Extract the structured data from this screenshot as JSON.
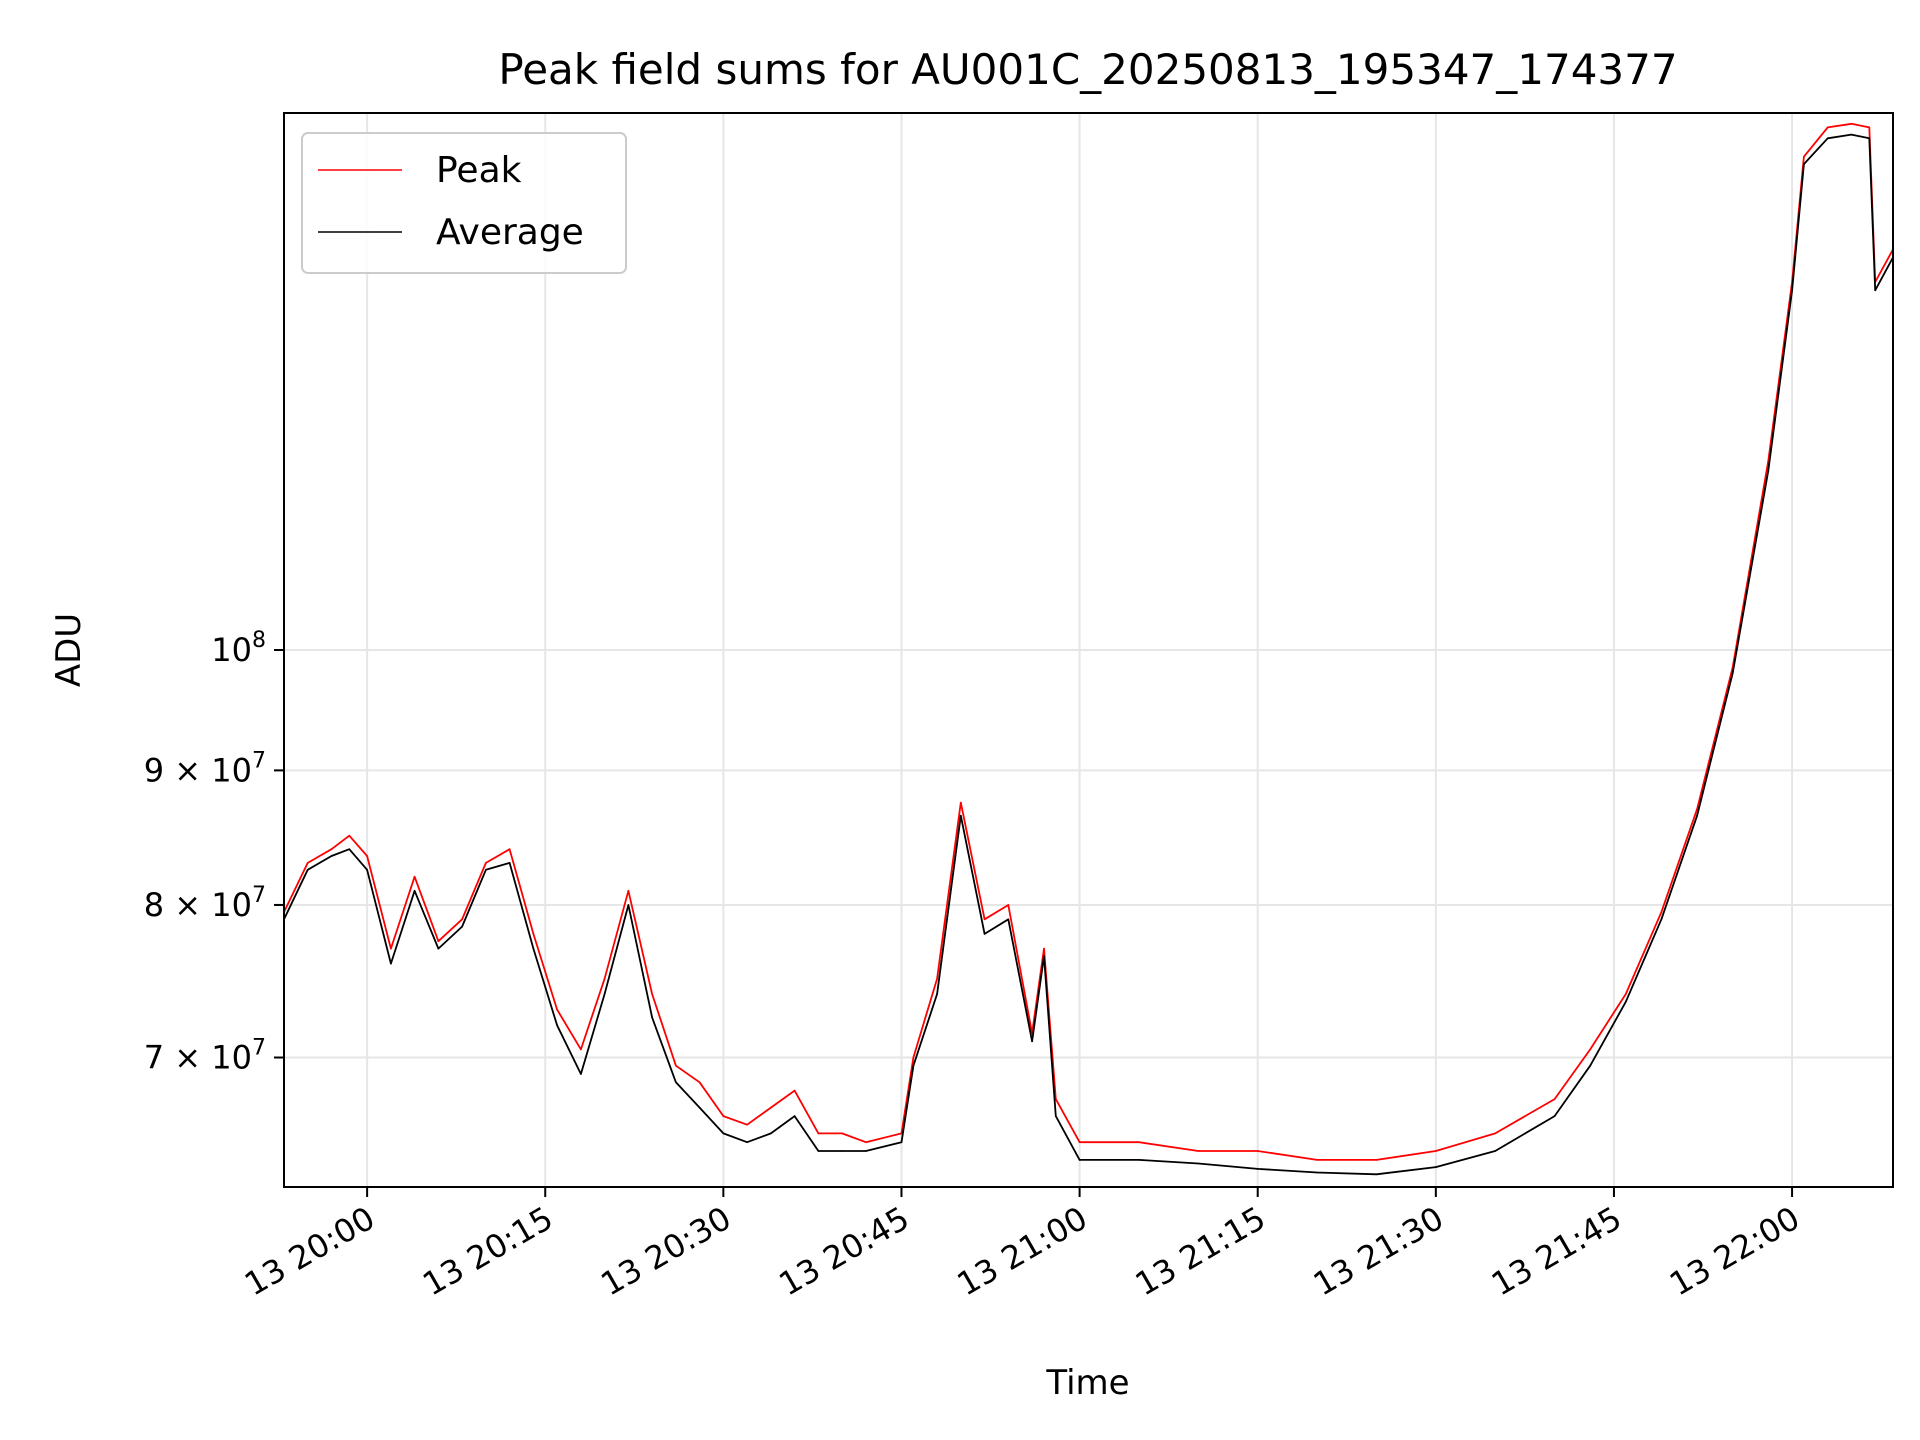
{
  "chart_data": {
    "type": "line",
    "title": "Peak field sums for AU001C_20250813_195347_174377",
    "xlabel": "Time",
    "ylabel": "ADU",
    "y_scale": "log",
    "xlim": [
      "2025-08-13 19:53:00",
      "2025-08-13 22:08:30"
    ],
    "ylim": [
      62500000,
      160000000
    ],
    "grid": true,
    "legend_position": "top-left",
    "x_ticks": [
      {
        "t": "2025-08-13 20:00",
        "label": "13 20:00"
      },
      {
        "t": "2025-08-13 20:15",
        "label": "13 20:15"
      },
      {
        "t": "2025-08-13 20:30",
        "label": "13 20:30"
      },
      {
        "t": "2025-08-13 20:45",
        "label": "13 20:45"
      },
      {
        "t": "2025-08-13 21:00",
        "label": "13 21:00"
      },
      {
        "t": "2025-08-13 21:15",
        "label": "13 21:15"
      },
      {
        "t": "2025-08-13 21:30",
        "label": "13 21:30"
      },
      {
        "t": "2025-08-13 21:45",
        "label": "13 21:45"
      },
      {
        "t": "2025-08-13 22:00",
        "label": "13 22:00"
      }
    ],
    "y_ticks": [
      {
        "value": 70000000,
        "label": "7 × 10^7",
        "base": "7 × 10",
        "exp": "7"
      },
      {
        "value": 80000000,
        "label": "8 × 10^7",
        "base": "8 × 10",
        "exp": "7"
      },
      {
        "value": 90000000,
        "label": "9 × 10^7",
        "base": "9 × 10",
        "exp": "7"
      },
      {
        "value": 100000000,
        "label": "10^8",
        "base": "10",
        "exp": "8"
      }
    ],
    "series": [
      {
        "name": "Peak",
        "color": "#ff0000",
        "points": [
          [
            "2025-08-13 19:53:00",
            79500000
          ],
          [
            "2025-08-13 19:55:00",
            83000000
          ],
          [
            "2025-08-13 19:57:00",
            84000000
          ],
          [
            "2025-08-13 19:58:30",
            85000000
          ],
          [
            "2025-08-13 20:00:00",
            83500000
          ],
          [
            "2025-08-13 20:02:00",
            77000000
          ],
          [
            "2025-08-13 20:04:00",
            82000000
          ],
          [
            "2025-08-13 20:06:00",
            77500000
          ],
          [
            "2025-08-13 20:08:00",
            79000000
          ],
          [
            "2025-08-13 20:10:00",
            83000000
          ],
          [
            "2025-08-13 20:12:00",
            84000000
          ],
          [
            "2025-08-13 20:14:00",
            78000000
          ],
          [
            "2025-08-13 20:16:00",
            73000000
          ],
          [
            "2025-08-13 20:18:00",
            70500000
          ],
          [
            "2025-08-13 20:20:00",
            75000000
          ],
          [
            "2025-08-13 20:22:00",
            81000000
          ],
          [
            "2025-08-13 20:24:00",
            74000000
          ],
          [
            "2025-08-13 20:26:00",
            69500000
          ],
          [
            "2025-08-13 20:28:00",
            68500000
          ],
          [
            "2025-08-13 20:30:00",
            66500000
          ],
          [
            "2025-08-13 20:32:00",
            66000000
          ],
          [
            "2025-08-13 20:34:00",
            67000000
          ],
          [
            "2025-08-13 20:36:00",
            68000000
          ],
          [
            "2025-08-13 20:38:00",
            65500000
          ],
          [
            "2025-08-13 20:40:00",
            65500000
          ],
          [
            "2025-08-13 20:42:00",
            65000000
          ],
          [
            "2025-08-13 20:45:00",
            65500000
          ],
          [
            "2025-08-13 20:46:00",
            70000000
          ],
          [
            "2025-08-13 20:48:00",
            75000000
          ],
          [
            "2025-08-13 20:50:00",
            87500000
          ],
          [
            "2025-08-13 20:52:00",
            79000000
          ],
          [
            "2025-08-13 20:54:00",
            80000000
          ],
          [
            "2025-08-13 20:56:00",
            71500000
          ],
          [
            "2025-08-13 20:57:00",
            77000000
          ],
          [
            "2025-08-13 20:58:00",
            67500000
          ],
          [
            "2025-08-13 21:00:00",
            65000000
          ],
          [
            "2025-08-13 21:05:00",
            65000000
          ],
          [
            "2025-08-13 21:10:00",
            64500000
          ],
          [
            "2025-08-13 21:15:00",
            64500000
          ],
          [
            "2025-08-13 21:20:00",
            64000000
          ],
          [
            "2025-08-13 21:25:00",
            64000000
          ],
          [
            "2025-08-13 21:30:00",
            64500000
          ],
          [
            "2025-08-13 21:35:00",
            65500000
          ],
          [
            "2025-08-13 21:40:00",
            67500000
          ],
          [
            "2025-08-13 21:43:00",
            70500000
          ],
          [
            "2025-08-13 21:46:00",
            74000000
          ],
          [
            "2025-08-13 21:49:00",
            79500000
          ],
          [
            "2025-08-13 21:52:00",
            87000000
          ],
          [
            "2025-08-13 21:55:00",
            98500000
          ],
          [
            "2025-08-13 21:58:00",
            118000000
          ],
          [
            "2025-08-13 22:00:00",
            138000000
          ],
          [
            "2025-08-13 22:01:00",
            154000000
          ],
          [
            "2025-08-13 22:03:00",
            158000000
          ],
          [
            "2025-08-13 22:05:00",
            158500000
          ],
          [
            "2025-08-13 22:06:30",
            158000000
          ],
          [
            "2025-08-13 22:07:00",
            138000000
          ],
          [
            "2025-08-13 22:08:30",
            142000000
          ]
        ]
      },
      {
        "name": "Average",
        "color": "#000000",
        "points": [
          [
            "2025-08-13 19:53:00",
            79000000
          ],
          [
            "2025-08-13 19:55:00",
            82500000
          ],
          [
            "2025-08-13 19:57:00",
            83500000
          ],
          [
            "2025-08-13 19:58:30",
            84000000
          ],
          [
            "2025-08-13 20:00:00",
            82500000
          ],
          [
            "2025-08-13 20:02:00",
            76000000
          ],
          [
            "2025-08-13 20:04:00",
            81000000
          ],
          [
            "2025-08-13 20:06:00",
            77000000
          ],
          [
            "2025-08-13 20:08:00",
            78500000
          ],
          [
            "2025-08-13 20:10:00",
            82500000
          ],
          [
            "2025-08-13 20:12:00",
            83000000
          ],
          [
            "2025-08-13 20:14:00",
            77000000
          ],
          [
            "2025-08-13 20:16:00",
            72000000
          ],
          [
            "2025-08-13 20:18:00",
            69000000
          ],
          [
            "2025-08-13 20:20:00",
            74000000
          ],
          [
            "2025-08-13 20:22:00",
            80000000
          ],
          [
            "2025-08-13 20:24:00",
            72500000
          ],
          [
            "2025-08-13 20:26:00",
            68500000
          ],
          [
            "2025-08-13 20:28:00",
            67000000
          ],
          [
            "2025-08-13 20:30:00",
            65500000
          ],
          [
            "2025-08-13 20:32:00",
            65000000
          ],
          [
            "2025-08-13 20:34:00",
            65500000
          ],
          [
            "2025-08-13 20:36:00",
            66500000
          ],
          [
            "2025-08-13 20:38:00",
            64500000
          ],
          [
            "2025-08-13 20:40:00",
            64500000
          ],
          [
            "2025-08-13 20:42:00",
            64500000
          ],
          [
            "2025-08-13 20:45:00",
            65000000
          ],
          [
            "2025-08-13 20:46:00",
            69500000
          ],
          [
            "2025-08-13 20:48:00",
            74000000
          ],
          [
            "2025-08-13 20:50:00",
            86500000
          ],
          [
            "2025-08-13 20:52:00",
            78000000
          ],
          [
            "2025-08-13 20:54:00",
            79000000
          ],
          [
            "2025-08-13 20:56:00",
            71000000
          ],
          [
            "2025-08-13 20:57:00",
            76500000
          ],
          [
            "2025-08-13 20:58:00",
            66500000
          ],
          [
            "2025-08-13 21:00:00",
            64000000
          ],
          [
            "2025-08-13 21:05:00",
            64000000
          ],
          [
            "2025-08-13 21:10:00",
            63800000
          ],
          [
            "2025-08-13 21:15:00",
            63500000
          ],
          [
            "2025-08-13 21:20:00",
            63300000
          ],
          [
            "2025-08-13 21:25:00",
            63200000
          ],
          [
            "2025-08-13 21:30:00",
            63600000
          ],
          [
            "2025-08-13 21:35:00",
            64500000
          ],
          [
            "2025-08-13 21:40:00",
            66500000
          ],
          [
            "2025-08-13 21:43:00",
            69500000
          ],
          [
            "2025-08-13 21:46:00",
            73500000
          ],
          [
            "2025-08-13 21:49:00",
            79000000
          ],
          [
            "2025-08-13 21:52:00",
            86500000
          ],
          [
            "2025-08-13 21:55:00",
            98000000
          ],
          [
            "2025-08-13 21:58:00",
            117000000
          ],
          [
            "2025-08-13 22:00:00",
            137000000
          ],
          [
            "2025-08-13 22:01:00",
            153000000
          ],
          [
            "2025-08-13 22:03:00",
            156500000
          ],
          [
            "2025-08-13 22:05:00",
            157000000
          ],
          [
            "2025-08-13 22:06:30",
            156500000
          ],
          [
            "2025-08-13 22:07:00",
            137000000
          ],
          [
            "2025-08-13 22:08:30",
            141000000
          ]
        ]
      }
    ]
  }
}
